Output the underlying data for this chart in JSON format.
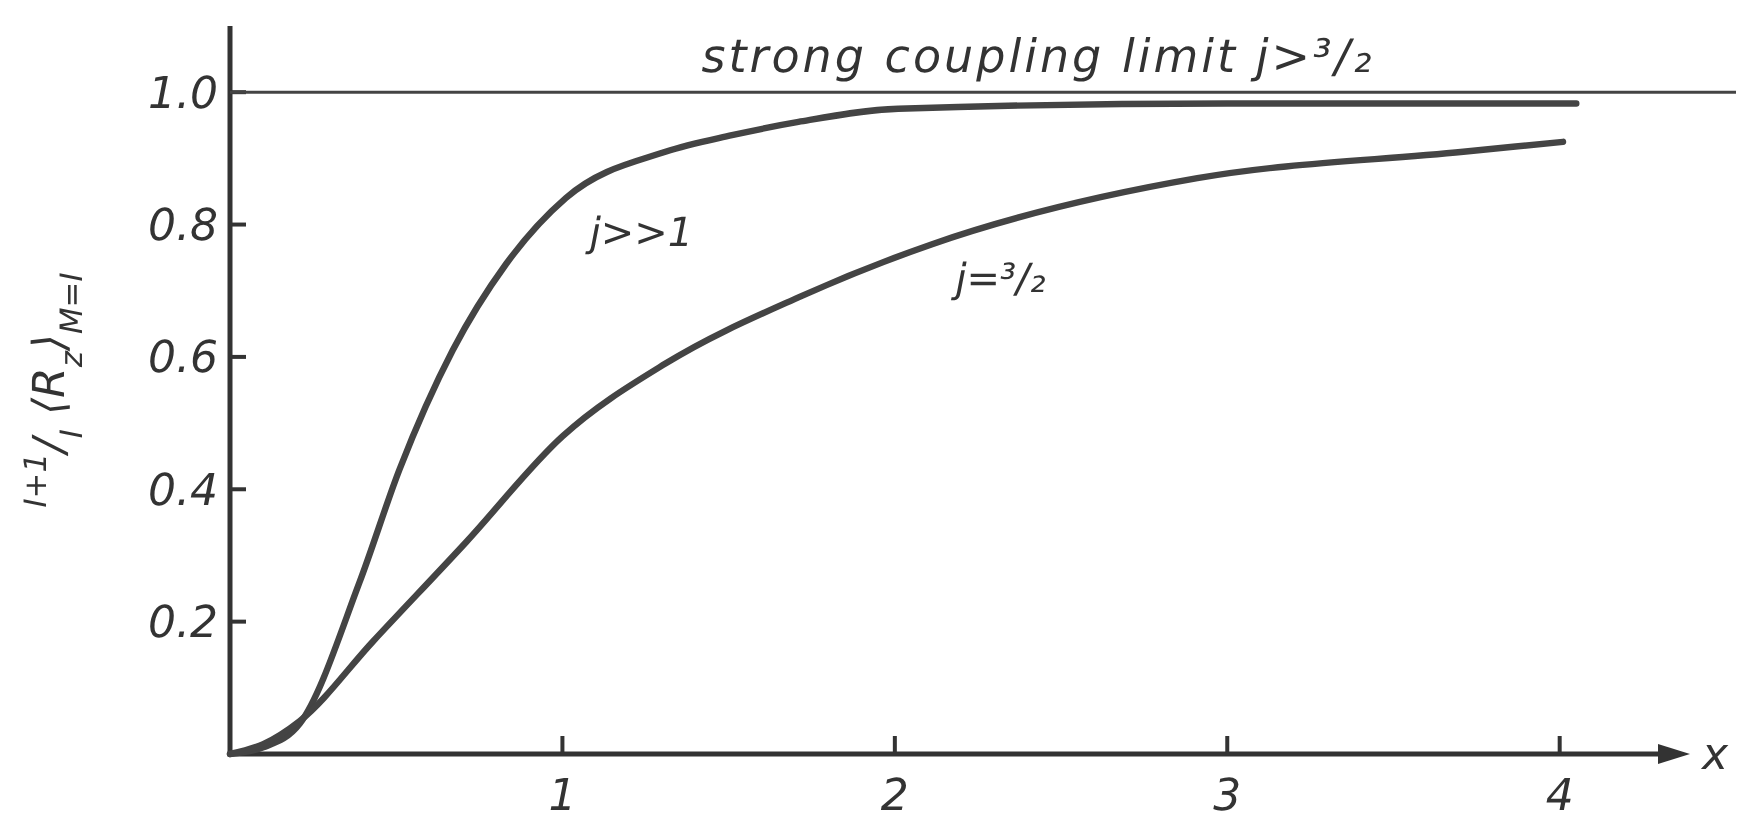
{
  "chart_data": {
    "type": "line",
    "xlabel": "x",
    "ylabel": "$^{I+1}$/$_{I}$ ⟨R$_{z}$⟩$_{M=I}$",
    "xlim": [
      0,
      4.38
    ],
    "ylim": [
      0,
      1.1
    ],
    "xticks": [
      1,
      2,
      3,
      4
    ],
    "yticks": [
      0.2,
      0.4,
      0.6,
      0.8,
      {
        "value": 1.0,
        "label": "1.0"
      }
    ],
    "grid": false,
    "line_style": "solid",
    "marker": "none",
    "ref_lines": [
      {
        "axis": "y",
        "value": 1.0,
        "label": "strong coupling limit j>³/₂",
        "color": "#444444"
      }
    ],
    "series": [
      {
        "name": "j>>1",
        "color": "#444444",
        "x": [
          0,
          0.1,
          0.21,
          0.39,
          0.51,
          0.67,
          0.83,
          1.01,
          1.31,
          1.51,
          1.71,
          2.01,
          3,
          4.05
        ],
        "values": [
          0,
          0.01,
          0.046,
          0.26,
          0.43,
          0.61,
          0.74,
          0.84,
          0.91,
          0.935,
          0.955,
          0.975,
          0.983,
          0.983
        ]
      },
      {
        "name": "j=³/₂",
        "color": "#444444",
        "x": [
          0,
          0.1,
          0.21,
          0.43,
          0.71,
          1.0,
          1.31,
          1.71,
          2.11,
          2.91,
          3.71,
          4.01
        ],
        "values": [
          0,
          0.015,
          0.05,
          0.17,
          0.32,
          0.48,
          0.59,
          0.69,
          0.77,
          0.87,
          0.91,
          0.925
        ]
      }
    ]
  }
}
